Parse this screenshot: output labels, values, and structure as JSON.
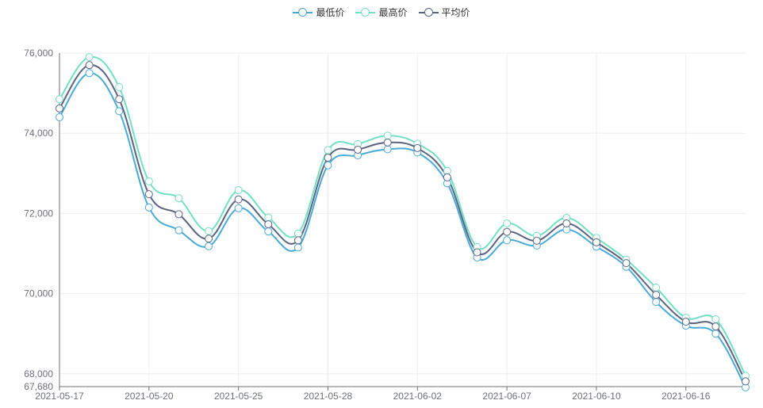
{
  "legend": [
    {
      "name": "最低价",
      "color": "#4aaad6"
    },
    {
      "name": "最高价",
      "color": "#72dfc3"
    },
    {
      "name": "平均价",
      "color": "#5c6381"
    }
  ],
  "chart_data": {
    "type": "line",
    "smooth": true,
    "grid": true,
    "legend_position": "top-center",
    "x": [
      "2021-05-17",
      "2021-05-18",
      "2021-05-19",
      "2021-05-20",
      "2021-05-21",
      "2021-05-24",
      "2021-05-25",
      "2021-05-26",
      "2021-05-27",
      "2021-05-28",
      "2021-05-31",
      "2021-06-01",
      "2021-06-02",
      "2021-06-03",
      "2021-06-04",
      "2021-06-07",
      "2021-06-08",
      "2021-06-09",
      "2021-06-10",
      "2021-06-11",
      "2021-06-15",
      "2021-06-16",
      "2021-06-17",
      "2021-06-18"
    ],
    "x_tick_labels": [
      "2021-05-17",
      "2021-05-20",
      "2021-05-25",
      "2021-05-28",
      "2021-06-02",
      "2021-06-07",
      "2021-06-10",
      "2021-06-16"
    ],
    "y_ticks": [
      67680,
      68000,
      70000,
      72000,
      74000,
      76000
    ],
    "ylim": [
      67680,
      76000
    ],
    "series": [
      {
        "name": "最低价",
        "color": "#4aaad6",
        "values": [
          74400,
          75500,
          74550,
          72150,
          71580,
          71180,
          72130,
          71550,
          71150,
          73200,
          73450,
          73600,
          73520,
          72750,
          70900,
          71330,
          71200,
          71600,
          71170,
          70670,
          69790,
          69200,
          69000,
          67660
        ]
      },
      {
        "name": "最高价",
        "color": "#72dfc3",
        "values": [
          74850,
          75900,
          75150,
          72800,
          72380,
          71560,
          72580,
          71900,
          71500,
          73580,
          73730,
          73940,
          73740,
          73060,
          71160,
          71750,
          71440,
          71890,
          71390,
          70850,
          70150,
          69400,
          69360,
          67950
        ]
      },
      {
        "name": "平均价",
        "color": "#5c6381",
        "values": [
          74620,
          75700,
          74850,
          72480,
          71980,
          71370,
          72350,
          71730,
          71330,
          73390,
          73590,
          73770,
          73630,
          72900,
          71030,
          71540,
          71320,
          71750,
          71280,
          70760,
          69970,
          69300,
          69180,
          67810
        ]
      }
    ]
  }
}
